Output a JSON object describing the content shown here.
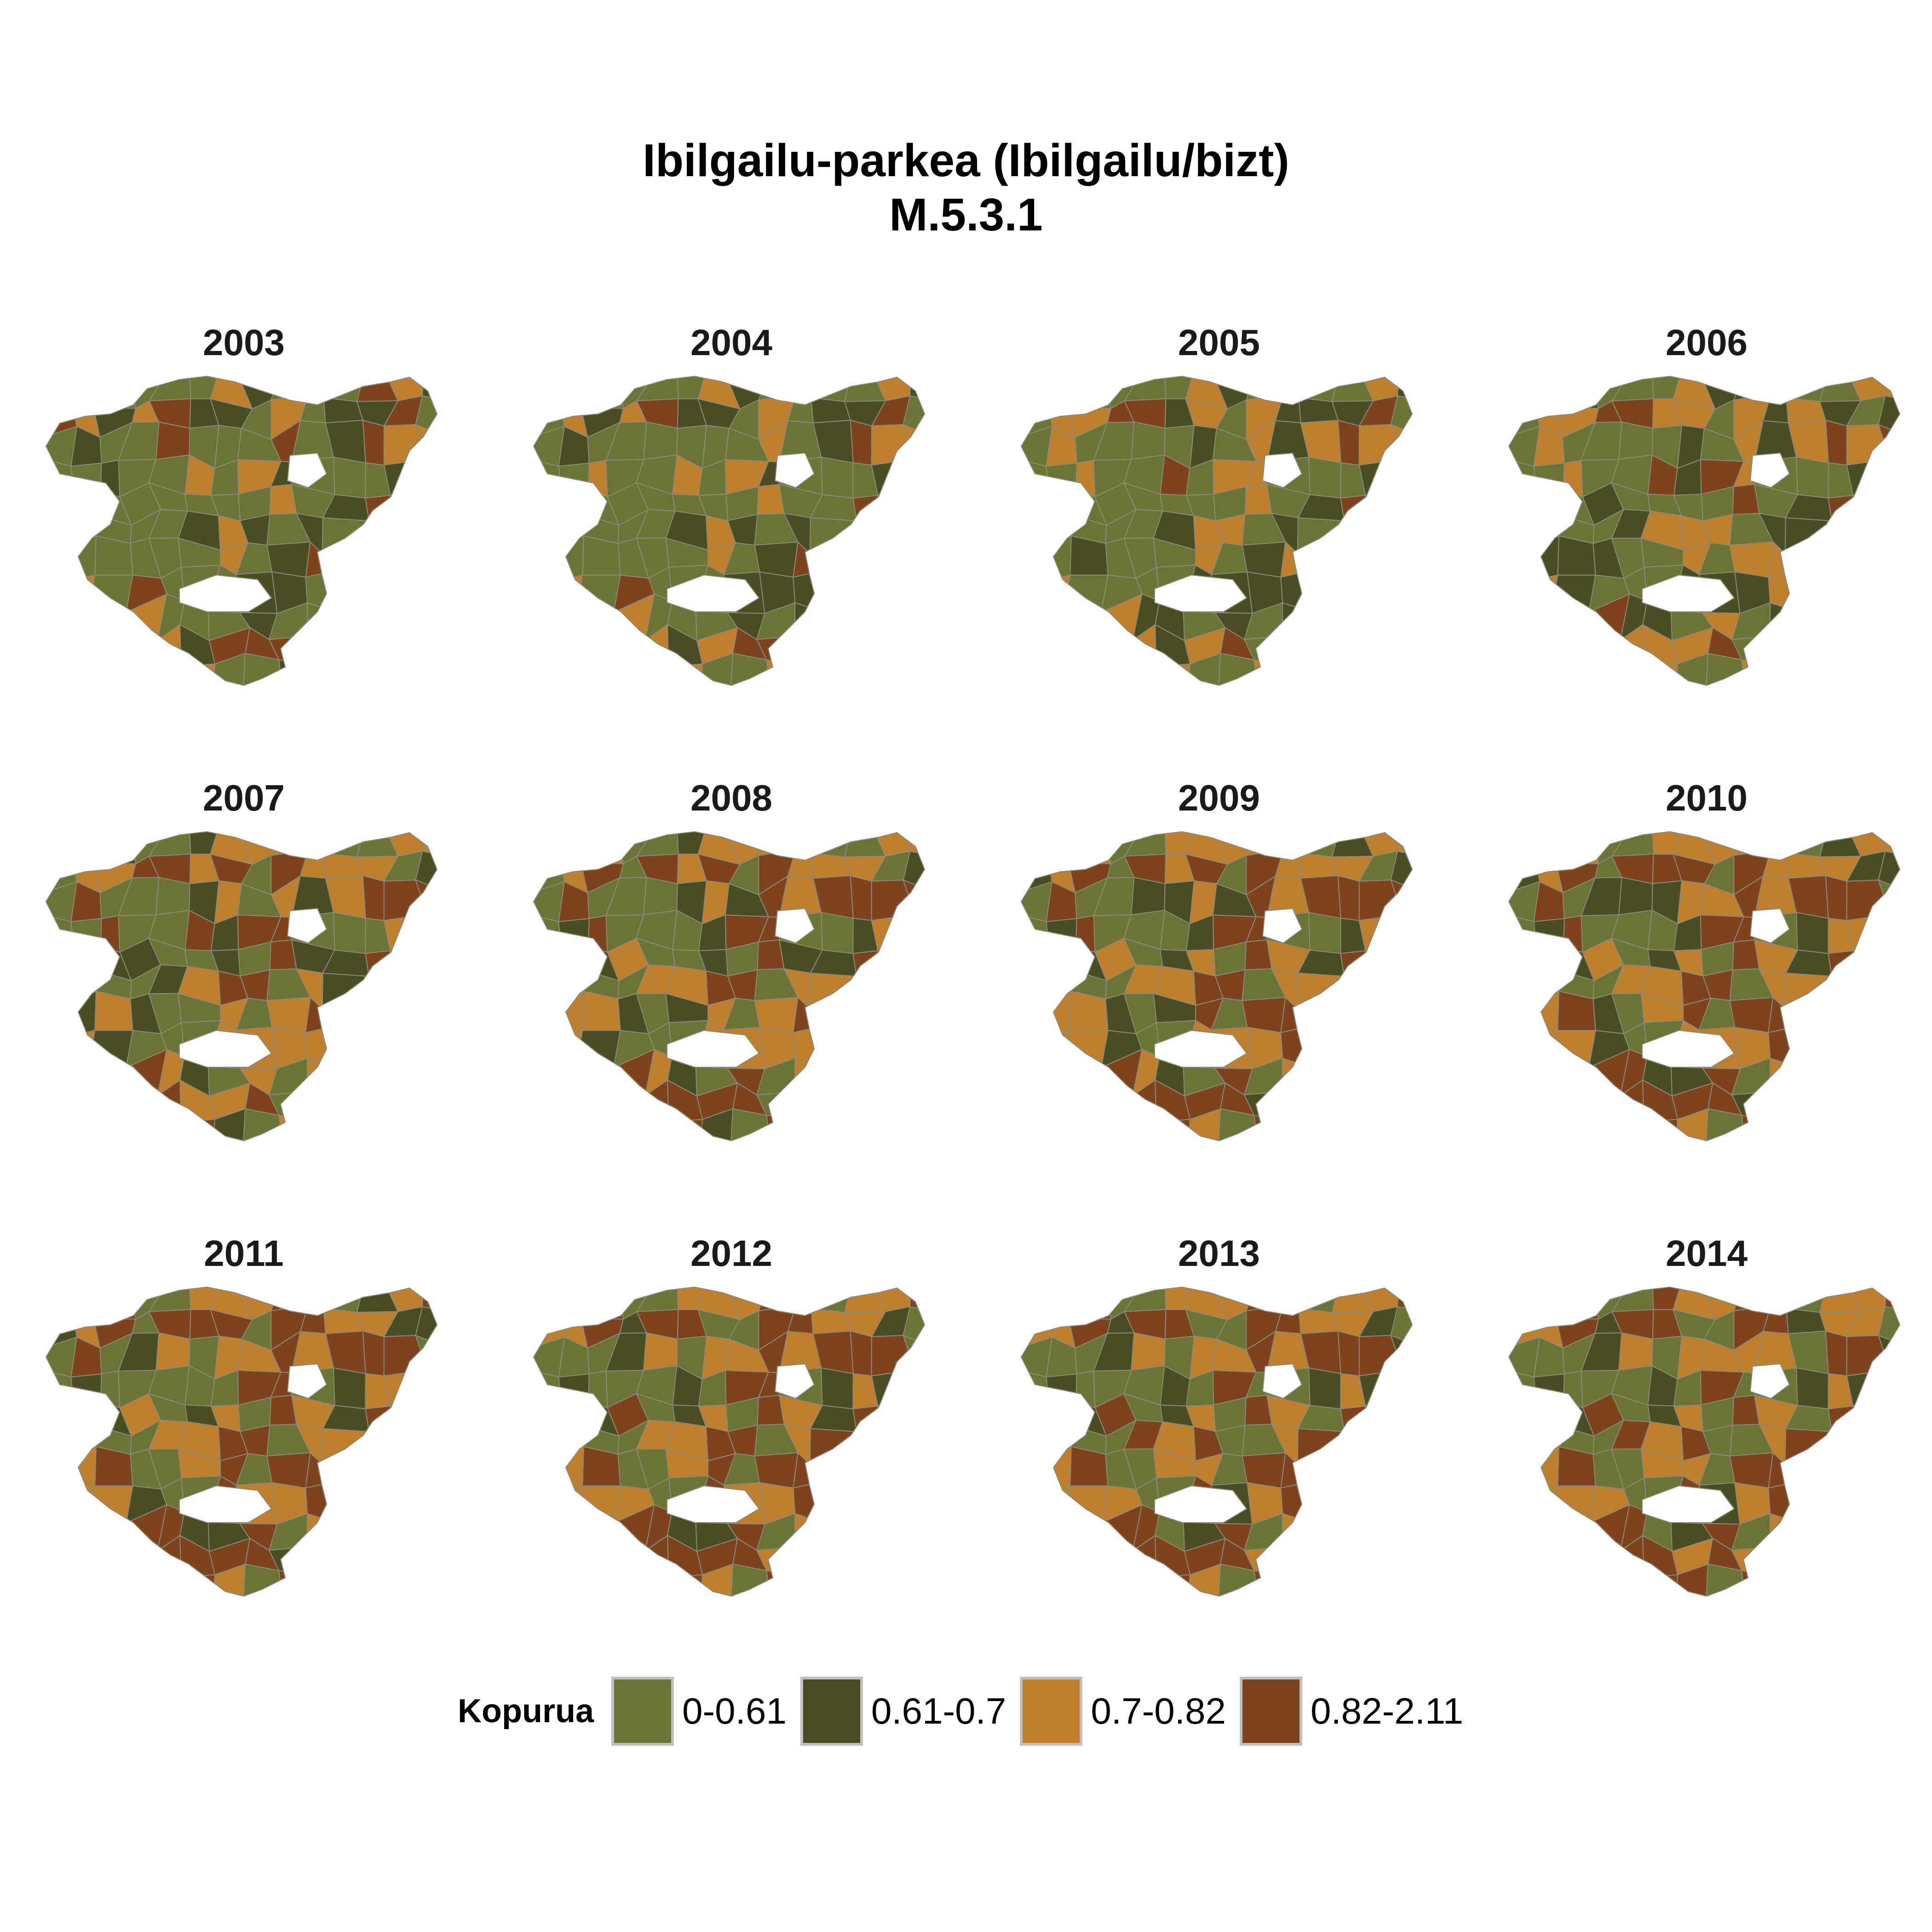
{
  "title": {
    "line1": "Ibilgailu-parkea (Ibilgailu/bizt)",
    "line2": "M.5.3.1"
  },
  "colors": {
    "class_0": "#6b7434",
    "class_1": "#4a4c24",
    "class_2": "#c07f2c",
    "class_3": "#7e421d",
    "border": "#8a8a7a"
  },
  "legend": {
    "title": "Kopurua",
    "items": [
      {
        "label": "0-0.61",
        "color": "#6b7434"
      },
      {
        "label": "0.61-0.7",
        "color": "#4a4c24"
      },
      {
        "label": "0.7-0.82",
        "color": "#c07f2c"
      },
      {
        "label": "0.82-2.11",
        "color": "#7e421d"
      }
    ]
  },
  "chart_data": {
    "type": "choropleth small multiples",
    "variable": "Kopurua",
    "classes": [
      "0-0.61",
      "0.61-0.7",
      "0.7-0.82",
      "0.82-2.11"
    ],
    "panels": [
      {
        "year": "2003",
        "share": [
          0.48,
          0.28,
          0.14,
          0.1
        ]
      },
      {
        "year": "2004",
        "share": [
          0.46,
          0.28,
          0.16,
          0.1
        ]
      },
      {
        "year": "2005",
        "share": [
          0.4,
          0.26,
          0.22,
          0.12
        ]
      },
      {
        "year": "2006",
        "share": [
          0.3,
          0.24,
          0.3,
          0.16
        ]
      },
      {
        "year": "2007",
        "share": [
          0.24,
          0.2,
          0.34,
          0.22
        ]
      },
      {
        "year": "2008",
        "share": [
          0.2,
          0.18,
          0.34,
          0.28
        ]
      },
      {
        "year": "2009",
        "share": [
          0.16,
          0.16,
          0.34,
          0.34
        ]
      },
      {
        "year": "2010",
        "share": [
          0.14,
          0.14,
          0.34,
          0.38
        ]
      },
      {
        "year": "2011",
        "share": [
          0.14,
          0.14,
          0.3,
          0.42
        ]
      },
      {
        "year": "2012",
        "share": [
          0.14,
          0.14,
          0.28,
          0.44
        ]
      },
      {
        "year": "2013",
        "share": [
          0.14,
          0.14,
          0.26,
          0.46
        ]
      },
      {
        "year": "2014",
        "share": [
          0.14,
          0.14,
          0.24,
          0.48
        ]
      }
    ]
  }
}
